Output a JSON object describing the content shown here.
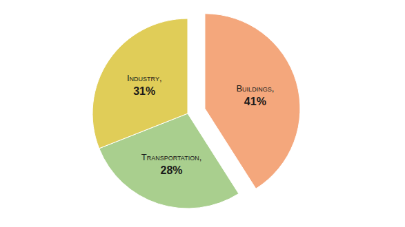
{
  "chart_data": {
    "type": "pie",
    "categories": [
      "Buildings,",
      "Transportation,",
      "Industry,"
    ],
    "values": [
      41,
      28,
      31
    ],
    "value_labels": [
      "41%",
      "28%",
      "31%"
    ],
    "colors": [
      "#f4a77c",
      "#a9cf8e",
      "#e0cd58"
    ],
    "data_labels": true
  }
}
